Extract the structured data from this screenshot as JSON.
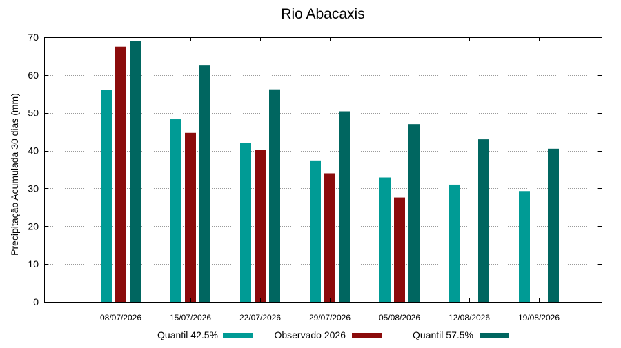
{
  "chart_data": {
    "type": "bar",
    "title": "Rio Abacaxis",
    "xlabel": "",
    "ylabel": "Precipitação Acumulada 30 dias (mm)",
    "ylim": [
      0,
      70
    ],
    "yticks": [
      0,
      10,
      20,
      30,
      40,
      50,
      60,
      70
    ],
    "grid": true,
    "legend_position": "bottom",
    "categories": [
      "08/07/2026",
      "15/07/2026",
      "22/07/2026",
      "29/07/2026",
      "05/08/2026",
      "12/08/2026",
      "19/08/2026"
    ],
    "series": [
      {
        "name": "Quantil 42.5%",
        "color": "#009b95",
        "values": [
          56,
          48.3,
          42,
          37.4,
          32.9,
          31,
          29.3
        ]
      },
      {
        "name": "Observado 2026",
        "color": "#8b0b0b",
        "values": [
          67.5,
          44.7,
          40.2,
          34,
          27.6,
          null,
          null
        ]
      },
      {
        "name": "Quantil 57.5%",
        "color": "#006660",
        "values": [
          69,
          62.5,
          56.2,
          50.4,
          47,
          43,
          40.5
        ]
      }
    ]
  }
}
